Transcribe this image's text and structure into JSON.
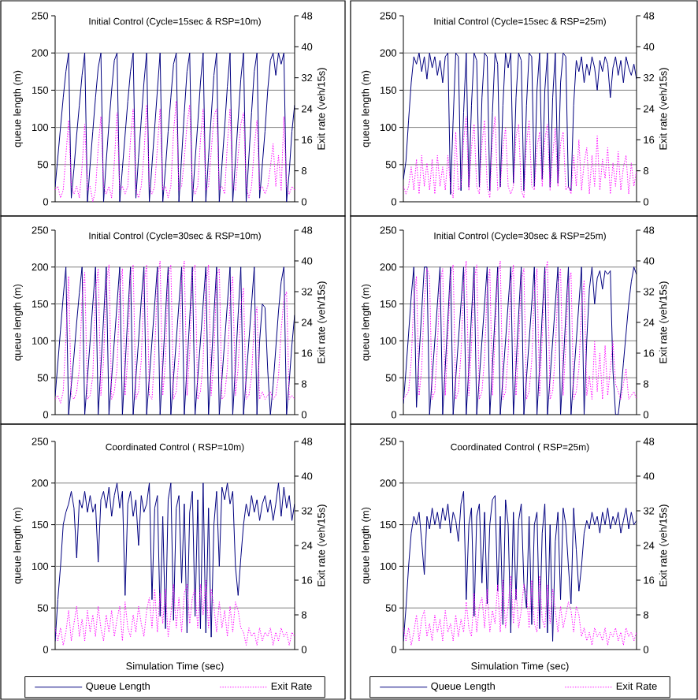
{
  "chart_data": [
    {
      "type": "line",
      "title": "Initial Control (Cycle=15sec & RSP=10m)",
      "ylabel": "queue length (m)",
      "y2label": "Exit rate (veh/15s)",
      "grid": "y",
      "ylim": [
        0,
        250
      ],
      "yticks": [
        0,
        50,
        100,
        150,
        200,
        250
      ],
      "y2lim": [
        0,
        48
      ],
      "y2ticks": [
        0,
        8,
        16,
        24,
        32,
        40,
        48
      ],
      "categories": [
        null,
        null,
        null,
        null,
        null,
        null,
        null,
        null,
        null,
        null,
        null,
        null,
        null,
        null,
        null,
        null,
        null,
        null,
        null,
        null,
        null,
        null,
        null,
        null,
        null,
        null,
        null,
        null,
        null,
        null,
        null,
        null,
        null,
        null,
        null,
        null,
        null,
        null,
        null,
        null,
        null,
        null,
        null,
        null,
        null,
        null,
        null,
        null,
        null,
        null,
        null,
        null,
        null,
        null,
        null,
        null,
        null,
        null,
        null,
        null,
        null,
        null,
        null,
        null,
        null,
        null,
        null,
        null,
        null,
        null,
        null,
        null,
        null,
        null,
        null,
        null,
        null,
        null,
        null,
        null,
        null,
        null,
        null,
        null,
        null,
        null,
        null,
        null,
        null,
        null
      ],
      "series": [
        {
          "color": "#000080",
          "line_style": "solid",
          "values": [
            20,
            60,
            100,
            140,
            175,
            200,
            5,
            45,
            90,
            130,
            170,
            200,
            0,
            50,
            95,
            140,
            180,
            200,
            0,
            55,
            105,
            150,
            190,
            200,
            0,
            45,
            90,
            135,
            175,
            200,
            5,
            60,
            110,
            160,
            200,
            0,
            50,
            100,
            150,
            200,
            0,
            45,
            95,
            140,
            185,
            200,
            0,
            60,
            120,
            175,
            200,
            0,
            55,
            105,
            160,
            200,
            0,
            60,
            115,
            170,
            200,
            0,
            50,
            100,
            155,
            200,
            0,
            55,
            110,
            165,
            200,
            0,
            60,
            120,
            175,
            200,
            5,
            50,
            95,
            150,
            190,
            200,
            170,
            200,
            185,
            200,
            0,
            40,
            95,
            130
          ]
        },
        {
          "color": "#ff00ff",
          "line_style": "dotted",
          "axis": "y2",
          "values": [
            3,
            4,
            1,
            3,
            12,
            21,
            4,
            2,
            4,
            1,
            9,
            20,
            3,
            4,
            0,
            3,
            14,
            22,
            4,
            2,
            4,
            1,
            10,
            23,
            3,
            4,
            2,
            4,
            16,
            24,
            3,
            1,
            4,
            12,
            25,
            4,
            2,
            4,
            14,
            24,
            3,
            4,
            1,
            4,
            18,
            26,
            3,
            4,
            11,
            20,
            25,
            4,
            2,
            4,
            16,
            24,
            3,
            4,
            13,
            22,
            24,
            3,
            4,
            2,
            15,
            24,
            4,
            3,
            12,
            20,
            23,
            4,
            1,
            4,
            14,
            21,
            3,
            4,
            2,
            4,
            9,
            15,
            4,
            12,
            3,
            22,
            4,
            2,
            4,
            3
          ]
        }
      ]
    },
    {
      "type": "line",
      "title": "Initial Control (Cycle=15sec & RSP=25m)",
      "ylabel": "queue length (m)",
      "y2label": "Exit rate (veh/15s)",
      "grid": "y",
      "ylim": [
        0,
        250
      ],
      "yticks": [
        0,
        50,
        100,
        150,
        200,
        250
      ],
      "y2lim": [
        0,
        48
      ],
      "y2ticks": [
        0,
        8,
        16,
        24,
        32,
        40,
        48
      ],
      "categories": [
        null,
        null,
        null,
        null,
        null,
        null,
        null,
        null,
        null,
        null,
        null,
        null,
        null,
        null,
        null,
        null,
        null,
        null,
        null,
        null,
        null,
        null,
        null,
        null,
        null,
        null,
        null,
        null,
        null,
        null,
        null,
        null,
        null,
        null,
        null,
        null,
        null,
        null,
        null,
        null,
        null,
        null,
        null,
        null,
        null,
        null,
        null,
        null,
        null,
        null,
        null,
        null,
        null,
        null,
        null,
        null,
        null,
        null,
        null,
        null,
        null,
        null,
        null,
        null,
        null,
        null,
        null,
        null,
        null,
        null,
        null,
        null,
        null,
        null,
        null,
        null,
        null,
        null,
        null,
        null,
        null,
        null,
        null,
        null,
        null,
        null,
        null,
        null,
        null,
        null
      ],
      "series": [
        {
          "color": "#000080",
          "line_style": "solid",
          "values": [
            30,
            55,
            110,
            160,
            195,
            185,
            200,
            175,
            195,
            165,
            200,
            180,
            195,
            170,
            190,
            160,
            195,
            200,
            10,
            110,
            200,
            195,
            15,
            120,
            200,
            20,
            130,
            200,
            190,
            20,
            140,
            200,
            195,
            15,
            120,
            200,
            185,
            20,
            130,
            200,
            180,
            200,
            25,
            140,
            200,
            190,
            15,
            130,
            200,
            195,
            20,
            150,
            200,
            30,
            150,
            200,
            20,
            140,
            200,
            25,
            160,
            200,
            195,
            20,
            15,
            130,
            190,
            175,
            195,
            160,
            185,
            170,
            195,
            180,
            150,
            190,
            175,
            195,
            185,
            140,
            180,
            195,
            170,
            190,
            160,
            195,
            180,
            170,
            185,
            165
          ]
        },
        {
          "color": "#ff00ff",
          "line_style": "dotted",
          "axis": "y2",
          "values": [
            4,
            2,
            4,
            9,
            3,
            11,
            2,
            12,
            4,
            10,
            3,
            11,
            2,
            12,
            4,
            9,
            3,
            12,
            4,
            1,
            18,
            3,
            4,
            16,
            22,
            3,
            14,
            20,
            4,
            2,
            15,
            21,
            4,
            1,
            16,
            22,
            3,
            4,
            14,
            19,
            4,
            2,
            4,
            17,
            20,
            3,
            1,
            15,
            21,
            4,
            3,
            14,
            18,
            4,
            16,
            20,
            3,
            12,
            19,
            4,
            15,
            18,
            3,
            4,
            2,
            12,
            4,
            16,
            3,
            10,
            14,
            2,
            12,
            4,
            17,
            3,
            11,
            6,
            14,
            2,
            10,
            4,
            13,
            3,
            9,
            12,
            2,
            10,
            4,
            8
          ]
        }
      ]
    },
    {
      "type": "line",
      "title": "Initial Control (Cycle=30sec & RSP=10m)",
      "ylabel": "queue length (m)",
      "y2label": "Exit rate (veh/15s)",
      "grid": "y",
      "ylim": [
        0,
        250
      ],
      "yticks": [
        0,
        50,
        100,
        150,
        200,
        250
      ],
      "y2lim": [
        0,
        48
      ],
      "y2ticks": [
        0,
        8,
        16,
        24,
        32,
        40,
        48
      ],
      "categories": [
        null,
        null,
        null,
        null,
        null,
        null,
        null,
        null,
        null,
        null,
        null,
        null,
        null,
        null,
        null,
        null,
        null,
        null,
        null,
        null,
        null,
        null,
        null,
        null,
        null,
        null,
        null,
        null,
        null,
        null,
        null,
        null,
        null,
        null,
        null,
        null,
        null,
        null,
        null,
        null,
        null,
        null,
        null,
        null,
        null,
        null,
        null,
        null,
        null,
        null,
        null,
        null,
        null,
        null,
        null,
        null,
        null,
        null,
        null,
        null,
        null,
        null,
        null,
        null,
        null,
        null,
        null,
        null,
        null,
        null,
        null,
        null,
        null,
        null,
        null,
        null,
        null,
        null,
        null,
        null,
        null,
        null,
        null,
        null,
        null,
        null,
        null,
        null,
        null,
        null
      ],
      "series": [
        {
          "color": "#000080",
          "line_style": "solid",
          "values": [
            25,
            70,
            115,
            160,
            200,
            0,
            40,
            80,
            125,
            165,
            200,
            0,
            50,
            100,
            150,
            200,
            0,
            65,
            130,
            200,
            0,
            50,
            100,
            150,
            200,
            0,
            65,
            135,
            200,
            0,
            50,
            100,
            155,
            200,
            0,
            50,
            100,
            150,
            200,
            0,
            65,
            135,
            200,
            0,
            50,
            100,
            150,
            200,
            0,
            65,
            130,
            200,
            0,
            50,
            100,
            150,
            200,
            0,
            65,
            135,
            200,
            0,
            50,
            100,
            150,
            200,
            0,
            65,
            135,
            200,
            0,
            50,
            100,
            150,
            200,
            0,
            100,
            150,
            145,
            60,
            0,
            40,
            90,
            140,
            180,
            200,
            0,
            45,
            95,
            135
          ]
        },
        {
          "color": "#ff00ff",
          "line_style": "dotted",
          "axis": "y2",
          "values": [
            4,
            5,
            3,
            6,
            20,
            36,
            5,
            4,
            6,
            12,
            30,
            37,
            4,
            5,
            10,
            32,
            38,
            5,
            14,
            34,
            39,
            4,
            6,
            12,
            33,
            38,
            5,
            15,
            36,
            39,
            4,
            6,
            14,
            34,
            39,
            5,
            4,
            16,
            35,
            40,
            5,
            14,
            36,
            39,
            4,
            6,
            15,
            35,
            40,
            5,
            16,
            37,
            39,
            4,
            6,
            14,
            34,
            39,
            5,
            15,
            36,
            38,
            4,
            5,
            12,
            30,
            36,
            5,
            12,
            28,
            33,
            4,
            5,
            10,
            24,
            28,
            4,
            6,
            4,
            5,
            6,
            4,
            5,
            10,
            22,
            30,
            32,
            4,
            5,
            4
          ]
        }
      ]
    },
    {
      "type": "line",
      "title": "Initial Control (Cycle=30sec & RSP=25m)",
      "ylabel": "queue length (m)",
      "y2label": "Exit rate (veh/15s)",
      "grid": "y",
      "ylim": [
        0,
        250
      ],
      "yticks": [
        0,
        50,
        100,
        150,
        200,
        250
      ],
      "y2lim": [
        0,
        48
      ],
      "y2ticks": [
        0,
        8,
        16,
        24,
        32,
        40,
        48
      ],
      "categories": [
        null,
        null,
        null,
        null,
        null,
        null,
        null,
        null,
        null,
        null,
        null,
        null,
        null,
        null,
        null,
        null,
        null,
        null,
        null,
        null,
        null,
        null,
        null,
        null,
        null,
        null,
        null,
        null,
        null,
        null,
        null,
        null,
        null,
        null,
        null,
        null,
        null,
        null,
        null,
        null,
        null,
        null,
        null,
        null,
        null,
        null,
        null,
        null,
        null,
        null,
        null,
        null,
        null,
        null,
        null,
        null,
        null,
        null,
        null,
        null,
        null,
        null,
        null,
        null,
        null,
        null,
        null,
        null,
        null,
        null,
        null,
        null,
        null,
        null,
        null,
        null,
        null,
        null,
        null,
        null,
        null,
        null,
        null,
        null,
        null,
        null,
        null,
        null,
        null,
        null
      ],
      "series": [
        {
          "color": "#000080",
          "line_style": "solid",
          "values": [
            15,
            60,
            110,
            160,
            200,
            10,
            80,
            140,
            200,
            200,
            0,
            50,
            100,
            150,
            200,
            0,
            65,
            130,
            200,
            0,
            50,
            100,
            150,
            200,
            0,
            65,
            135,
            200,
            0,
            50,
            100,
            150,
            200,
            0,
            65,
            135,
            200,
            0,
            50,
            100,
            150,
            200,
            0,
            65,
            135,
            200,
            0,
            50,
            100,
            150,
            200,
            0,
            65,
            135,
            200,
            0,
            50,
            100,
            150,
            200,
            0,
            65,
            135,
            200,
            0,
            50,
            100,
            150,
            200,
            0,
            100,
            170,
            200,
            150,
            185,
            195,
            170,
            195,
            190,
            195,
            60,
            0,
            0,
            30,
            70,
            110,
            150,
            180,
            200,
            190
          ]
        },
        {
          "color": "#ff00ff",
          "line_style": "dotted",
          "axis": "y2",
          "values": [
            4,
            5,
            6,
            14,
            30,
            36,
            5,
            12,
            30,
            38,
            36,
            4,
            6,
            18,
            34,
            38,
            5,
            20,
            36,
            39,
            4,
            6,
            16,
            34,
            40,
            5,
            18,
            35,
            39,
            4,
            6,
            15,
            33,
            38,
            5,
            20,
            36,
            40,
            4,
            6,
            16,
            34,
            39,
            5,
            18,
            35,
            38,
            4,
            6,
            14,
            32,
            38,
            5,
            20,
            36,
            40,
            4,
            6,
            16,
            34,
            38,
            5,
            18,
            34,
            37,
            4,
            6,
            12,
            28,
            35,
            5,
            10,
            4,
            19,
            6,
            16,
            4,
            18,
            5,
            12,
            19,
            8,
            6,
            4,
            8,
            12,
            4,
            5,
            6,
            4
          ]
        }
      ]
    },
    {
      "type": "line",
      "title": "Coordinated Control ( RSP=10m)",
      "xlabel": "Simulation Time (sec)",
      "ylabel": "queue length (m)",
      "y2label": "Exit rate (veh/15s)",
      "grid": "y",
      "legend": "bottom",
      "ylim": [
        0,
        250
      ],
      "yticks": [
        0,
        50,
        100,
        150,
        200,
        250
      ],
      "y2lim": [
        0,
        48
      ],
      "y2ticks": [
        0,
        8,
        16,
        24,
        32,
        40,
        48
      ],
      "categories": [
        null,
        null,
        null,
        null,
        null,
        null,
        null,
        null,
        null,
        null,
        null,
        null,
        null,
        null,
        null,
        null,
        null,
        null,
        null,
        null,
        null,
        null,
        null,
        null,
        null,
        null,
        null,
        null,
        null,
        null,
        null,
        null,
        null,
        null,
        null,
        null,
        null,
        null,
        null,
        null,
        null,
        null,
        null,
        null,
        null,
        null,
        null,
        null,
        null,
        null,
        null,
        null,
        null,
        null,
        null,
        null,
        null,
        null,
        null,
        null,
        null,
        null,
        null,
        null,
        null,
        null,
        null,
        null,
        null,
        null,
        null,
        null,
        null,
        null,
        null,
        null,
        null,
        null,
        null,
        null,
        null,
        null,
        null,
        null,
        null,
        null,
        null,
        null,
        null,
        null
      ],
      "series": [
        {
          "name": "Queue Length",
          "color": "#000080",
          "line_style": "solid",
          "values": [
            10,
            60,
            100,
            150,
            165,
            175,
            190,
            170,
            110,
            180,
            170,
            190,
            165,
            185,
            165,
            175,
            105,
            180,
            190,
            170,
            195,
            160,
            185,
            200,
            170,
            190,
            65,
            175,
            190,
            160,
            180,
            125,
            185,
            165,
            175,
            200,
            60,
            170,
            185,
            40,
            160,
            25,
            180,
            200,
            35,
            170,
            185,
            80,
            175,
            20,
            165,
            190,
            40,
            180,
            25,
            200,
            20,
            170,
            15,
            150,
            190,
            100,
            195,
            180,
            200,
            175,
            190,
            100,
            65,
            110,
            150,
            175,
            160,
            185,
            165,
            180,
            155,
            175,
            185,
            165,
            180,
            155,
            175,
            200,
            160,
            195,
            170,
            185,
            155,
            175
          ]
        },
        {
          "name": "Exit Rate",
          "color": "#ff00ff",
          "line_style": "dotted",
          "axis": "y2",
          "values": [
            5,
            2,
            5,
            1,
            4,
            9,
            2,
            6,
            10,
            3,
            7,
            2,
            9,
            4,
            8,
            3,
            10,
            5,
            2,
            8,
            4,
            9,
            3,
            7,
            10,
            2,
            11,
            5,
            3,
            8,
            4,
            10,
            6,
            3,
            9,
            12,
            5,
            14,
            4,
            13,
            6,
            14,
            3,
            8,
            15,
            5,
            12,
            4,
            13,
            15,
            6,
            12,
            14,
            5,
            15,
            8,
            16,
            5,
            14,
            10,
            4,
            11,
            5,
            9,
            3,
            10,
            4,
            11,
            9,
            5,
            4,
            1,
            5,
            3,
            4,
            1,
            5,
            2,
            4,
            3,
            5,
            1,
            4,
            2,
            5,
            3,
            4,
            1,
            4,
            3
          ]
        }
      ]
    },
    {
      "type": "line",
      "title": "Coordinated Control ( RSP=25m)",
      "xlabel": "Simulation Time (sec)",
      "ylabel": "queue length (m)",
      "y2label": "Exit rate (veh/15s)",
      "grid": "y",
      "legend": "bottom",
      "ylim": [
        0,
        250
      ],
      "yticks": [
        0,
        50,
        100,
        150,
        200,
        250
      ],
      "y2lim": [
        0,
        48
      ],
      "y2ticks": [
        0,
        8,
        16,
        24,
        32,
        40,
        48
      ],
      "categories": [
        null,
        null,
        null,
        null,
        null,
        null,
        null,
        null,
        null,
        null,
        null,
        null,
        null,
        null,
        null,
        null,
        null,
        null,
        null,
        null,
        null,
        null,
        null,
        null,
        null,
        null,
        null,
        null,
        null,
        null,
        null,
        null,
        null,
        null,
        null,
        null,
        null,
        null,
        null,
        null,
        null,
        null,
        null,
        null,
        null,
        null,
        null,
        null,
        null,
        null,
        null,
        null,
        null,
        null,
        null,
        null,
        null,
        null,
        null,
        null,
        null,
        null,
        null,
        null,
        null,
        null,
        null,
        null,
        null,
        null,
        null,
        null,
        null,
        null,
        null,
        null,
        null,
        null,
        null,
        null,
        null,
        null,
        null,
        null,
        null,
        null,
        null,
        null,
        null,
        null
      ],
      "series": [
        {
          "name": "Queue Length",
          "color": "#000080",
          "line_style": "solid",
          "values": [
            10,
            50,
            100,
            140,
            160,
            150,
            165,
            130,
            90,
            160,
            145,
            170,
            150,
            165,
            145,
            170,
            155,
            175,
            140,
            165,
            155,
            130,
            175,
            190,
            60,
            150,
            170,
            40,
            160,
            175,
            80,
            165,
            55,
            150,
            180,
            185,
            70,
            160,
            30,
            180,
            150,
            20,
            165,
            60,
            155,
            175,
            80,
            50,
            160,
            30,
            150,
            165,
            25,
            140,
            175,
            20,
            150,
            10,
            130,
            165,
            60,
            170,
            150,
            100,
            55,
            170,
            120,
            70,
            100,
            140,
            155,
            145,
            165,
            150,
            160,
            140,
            165,
            150,
            170,
            145,
            160,
            150,
            165,
            140,
            155,
            170,
            145,
            165,
            150,
            155
          ]
        },
        {
          "name": "Exit Rate",
          "color": "#ff00ff",
          "line_style": "dotted",
          "axis": "y2",
          "values": [
            5,
            2,
            5,
            1,
            4,
            8,
            2,
            7,
            9,
            3,
            6,
            2,
            8,
            4,
            7,
            2,
            9,
            4,
            6,
            2,
            8,
            3,
            7,
            4,
            11,
            5,
            3,
            13,
            4,
            10,
            12,
            5,
            14,
            4,
            9,
            6,
            15,
            4,
            16,
            5,
            10,
            17,
            6,
            14,
            5,
            9,
            15,
            13,
            5,
            16,
            6,
            4,
            17,
            7,
            5,
            15,
            6,
            14,
            9,
            4,
            10,
            5,
            8,
            11,
            9,
            4,
            10,
            8,
            3,
            5,
            2,
            4,
            1,
            5,
            3,
            4,
            2,
            5,
            1,
            4,
            3,
            5,
            2,
            4,
            1,
            5,
            3,
            4,
            2,
            4
          ]
        }
      ]
    }
  ]
}
